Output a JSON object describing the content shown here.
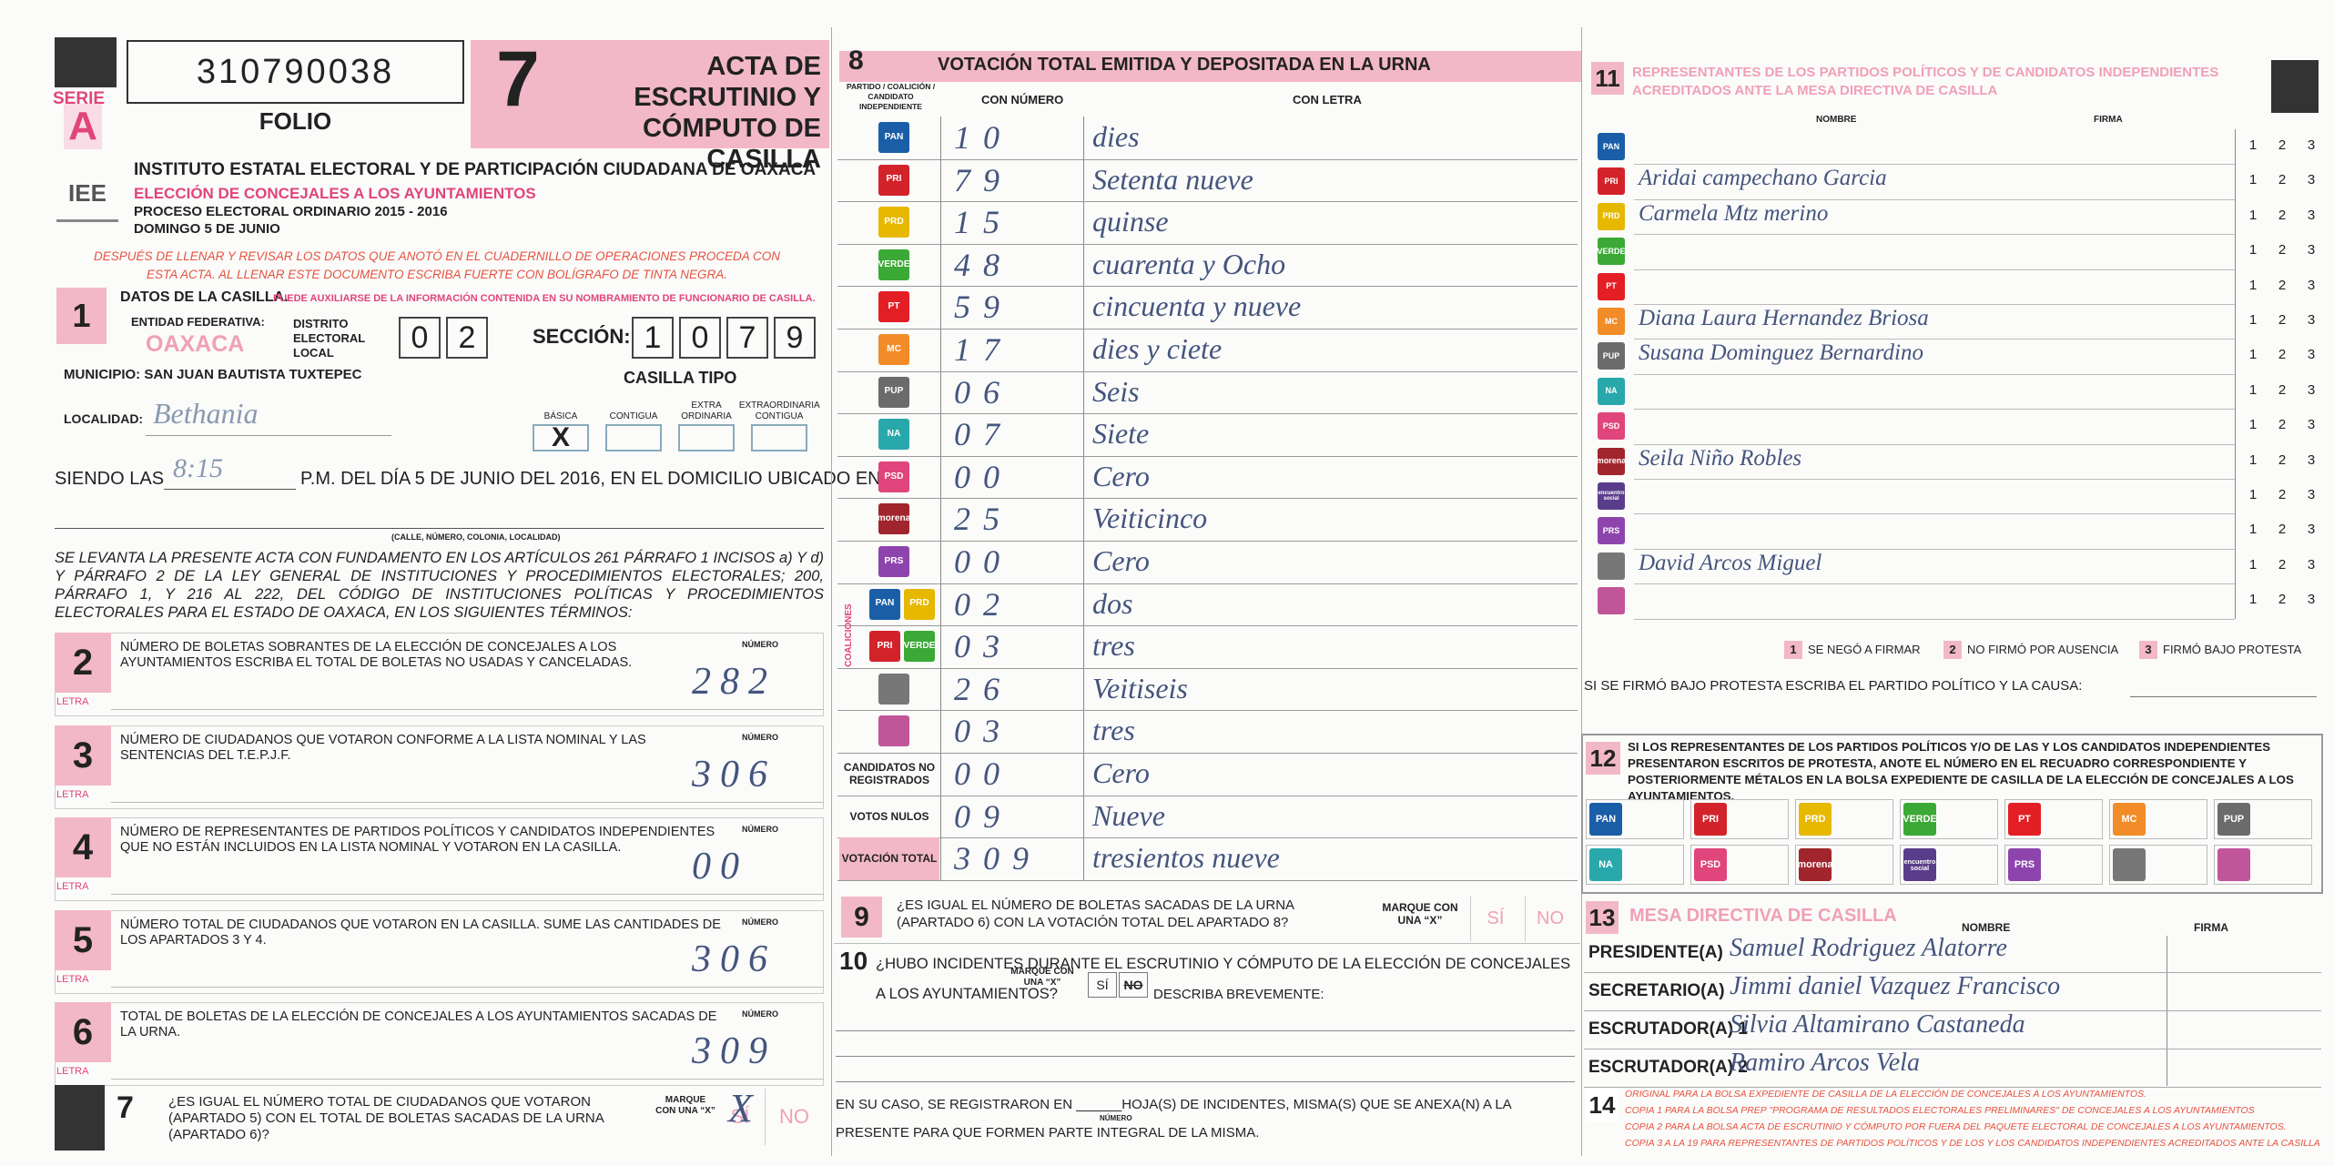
{
  "header": {
    "serie": "SERIE",
    "serie_letter": "A",
    "folio_number": "310790038",
    "folio_label": "FOLIO",
    "acta_number": "7",
    "acta_title": "ACTA DE ESCRUTINIO Y CÓMPUTO DE CASILLA"
  },
  "institute": {
    "logo": "IEE",
    "name": "INSTITUTO ESTATAL ELECTORAL Y DE PARTICIPACIÓN CIUDADANA DE OAXACA",
    "election": "ELECCIÓN DE CONCEJALES A LOS AYUNTAMIENTOS",
    "process": "PROCESO ELECTORAL ORDINARIO 2015 - 2016",
    "date": "DOMINGO 5 DE JUNIO"
  },
  "instruction": "DESPUÉS DE LLENAR Y REVISAR LOS DATOS QUE ANOTÓ EN EL CUADERNILLO DE OPERACIONES PROCEDA CON ESTA ACTA. AL LLENAR ESTE DOCUMENTO ESCRIBA FUERTE CON BOLÍGRAFO DE TINTA NEGRA.",
  "section1": {
    "number": "1",
    "title": "DATOS DE LA CASILLA.",
    "note": "PUEDE AUXILIARSE DE LA INFORMACIÓN CONTENIDA EN SU NOMBRAMIENTO DE FUNCIONARIO DE CASILLA.",
    "entidad_label": "ENTIDAD FEDERATIVA:",
    "entidad": "OAXACA",
    "distrito": {
      "label": "DISTRITO ELECTORAL LOCAL",
      "digits": [
        "0",
        "2"
      ]
    },
    "seccion": {
      "label": "SECCIÓN:",
      "digits": [
        "1",
        "0",
        "7",
        "9"
      ]
    },
    "municipio": "MUNICIPIO: SAN JUAN BAUTISTA TUXTEPEC",
    "localidad_label": "LOCALIDAD:",
    "localidad": "Bethania",
    "casilla_tipo": "CASILLA TIPO",
    "types": [
      {
        "label": "BÁSICA",
        "mark": "X"
      },
      {
        "label": "CONTIGUA",
        "mark": null
      },
      {
        "label": "EXTRA ORDINARIA",
        "mark": null
      },
      {
        "label": "EXTRAORDINARIA CONTIGUA",
        "mark": null
      }
    ],
    "siendo": "SIENDO LAS",
    "time": "8:15",
    "siendo_rest": "P.M. DEL DÍA 5 DE JUNIO DEL 2016, EN EL DOMICILIO UBICADO EN",
    "address_note": "(CALLE, NÚMERO, COLONIA, LOCALIDAD)"
  },
  "legal": "SE LEVANTA LA PRESENTE ACTA CON FUNDAMENTO EN LOS ARTÍCULOS 261 PÁRRAFO 1 INCISOS a) Y d) Y PÁRRAFO 2 DE LA LEY GENERAL DE INSTITUCIONES Y PROCEDIMIENTOS ELECTORALES; 200, PÁRRAFO 1, Y 216 AL 222, DEL CÓDIGO DE INSTITUCIONES POLÍTICAS Y PROCEDIMIENTOS ELECTORALES PARA EL ESTADO DE OAXACA, EN LOS SIGUIENTES TÉRMINOS:",
  "items": {
    "number_label": "NÚMERO",
    "letra_label": "LETRA",
    "list": [
      {
        "number": "2",
        "text": "NÚMERO DE BOLETAS SOBRANTES DE LA ELECCIÓN DE CONCEJALES A LOS AYUNTAMIENTOS ESCRIBA EL TOTAL DE BOLETAS NO USADAS Y CANCELADAS.",
        "value": "282"
      },
      {
        "number": "3",
        "text": "NÚMERO DE CIUDADANOS QUE VOTARON CONFORME A LA LISTA NOMINAL Y LAS SENTENCIAS DEL T.E.P.J.F.",
        "value": "306"
      },
      {
        "number": "4",
        "text": "NÚMERO DE REPRESENTANTES DE PARTIDOS POLÍTICOS Y CANDIDATOS INDEPENDIENTES QUE NO ESTÁN INCLUIDOS EN LA LISTA NOMINAL Y VOTARON EN LA CASILLA.",
        "value": "00"
      },
      {
        "number": "5",
        "text": "NÚMERO TOTAL DE CIUDADANOS QUE VOTARON EN LA CASILLA. SUME LAS CANTIDADES DE LOS APARTADOS 3 Y 4.",
        "value": "306"
      },
      {
        "number": "6",
        "text": "TOTAL DE BOLETAS DE LA ELECCIÓN DE CONCEJALES A LOS AYUNTAMIENTOS SACADAS DE LA URNA.",
        "value": "309"
      }
    ]
  },
  "section7": {
    "number": "7",
    "text": "¿ES IGUAL EL NÚMERO TOTAL DE CIUDADANOS QUE VOTARON (APARTADO 5) CON EL TOTAL DE BOLETAS SACADAS DE LA URNA (APARTADO 6)?",
    "marque": "MARQUE CON UNA “X”",
    "yes": "SÍ",
    "no": "NO",
    "mark": "X"
  },
  "section8": {
    "number": "8",
    "title": "VOTACIÓN TOTAL EMITIDA Y DEPOSITADA EN LA URNA",
    "col_party": "PARTIDO / COALICIÓN / CANDIDATO INDEPENDIENTE",
    "col_number": "CON NÚMERO",
    "col_letter": "CON LETRA",
    "coalitions_label": "COALICIONES",
    "rows": [
      {
        "logos": [
          {
            "label": "PAN",
            "color": "#1b5ea8"
          }
        ],
        "number": "10",
        "letter": "dies"
      },
      {
        "logos": [
          {
            "label": "PRI",
            "color": "#d2232a"
          }
        ],
        "number": "79",
        "letter": "Setenta nueve"
      },
      {
        "logos": [
          {
            "label": "PRD",
            "color": "#e6b800"
          }
        ],
        "number": "15",
        "letter": "quinse"
      },
      {
        "logos": [
          {
            "label": "VERDE",
            "color": "#3aa935"
          }
        ],
        "number": "48",
        "letter": "cuarenta y Ocho"
      },
      {
        "logos": [
          {
            "label": "PT",
            "color": "#e31e24"
          }
        ],
        "number": "59",
        "letter": "cincuenta y nueve"
      },
      {
        "logos": [
          {
            "label": "MC",
            "color": "#f28c28"
          }
        ],
        "number": "17",
        "letter": "dies y ciete"
      },
      {
        "logos": [
          {
            "label": "PUP",
            "color": "#6b6b6b"
          }
        ],
        "number": "06",
        "letter": "Seis"
      },
      {
        "logos": [
          {
            "label": "NA",
            "color": "#29a8ab"
          }
        ],
        "number": "07",
        "letter": "Siete"
      },
      {
        "logos": [
          {
            "label": "PSD",
            "color": "#e0457b"
          }
        ],
        "number": "00",
        "letter": "Cero"
      },
      {
        "logos": [
          {
            "label": "morena",
            "color": "#a0252c"
          }
        ],
        "number": "25",
        "letter": "Veiticinco"
      },
      {
        "logos": [
          {
            "label": "PRS",
            "color": "#8e44ad"
          }
        ],
        "number": "00",
        "letter": "Cero"
      },
      {
        "logos": [
          {
            "label": "PAN",
            "color": "#1b5ea8"
          },
          {
            "label": "PRD",
            "color": "#e6b800"
          }
        ],
        "number": "02",
        "letter": "dos"
      },
      {
        "logos": [
          {
            "label": "PRI",
            "color": "#d2232a"
          },
          {
            "label": "VERDE",
            "color": "#3aa935"
          }
        ],
        "number": "03",
        "letter": "tres"
      },
      {
        "logos": [
          {
            "label": null,
            "color": "#777777"
          }
        ],
        "number": "26",
        "letter": "Veitiseis"
      },
      {
        "logos": [
          {
            "label": null,
            "color": "#c0559a"
          }
        ],
        "number": "03",
        "letter": "tres"
      }
    ],
    "extra_rows": [
      {
        "label": "CANDIDATOS NO REGISTRADOS",
        "number": "00",
        "letter": "Cero"
      },
      {
        "label": "VOTOS NULOS",
        "number": "09",
        "letter": "Nueve"
      },
      {
        "label": "VOTACIÓN TOTAL",
        "number": "309",
        "letter": "tresientos nueve"
      }
    ]
  },
  "section9": {
    "number": "9",
    "text": "¿ES IGUAL EL NÚMERO DE BOLETAS SACADAS DE LA URNA (APARTADO 6) CON LA VOTACIÓN TOTAL DEL APARTADO 8?",
    "marque": "MARQUE CON UNA “X”",
    "yes": "SÍ",
    "no": "NO"
  },
  "section10": {
    "number": "10",
    "text": "¿HUBO INCIDENTES DURANTE EL ESCRUTINIO Y CÓMPUTO DE LA ELECCIÓN DE CONCEJALES A LOS AYUNTAMIENTOS?",
    "marque": "MARQUE CON UNA “X”",
    "yes": "SÍ",
    "no": "NO",
    "describe": "DESCRIBA BREVEMENTE:"
  },
  "incidents": {
    "line1": "EN SU CASO, SE REGISTRARON EN ______HOJA(S) DE INCIDENTES, MISMA(S) QUE SE ANEXA(N) A LA",
    "number_note": "NÚMERO",
    "line2": "PRESENTE PARA QUE FORMEN PARTE INTEGRAL DE LA MISMA."
  },
  "section11": {
    "number": "11",
    "title": "REPRESENTANTES DE LOS PARTIDOS POLÍTICOS Y DE CANDIDATOS INDEPENDIENTES ACREDITADOS ANTE LA MESA DIRECTIVA DE CASILLA",
    "col_name": "NOMBRE",
    "col_sign": "FIRMA",
    "options": [
      "1",
      "2",
      "3"
    ],
    "rows": [
      {
        "logo": {
          "label": "PAN",
          "color": "#1b5ea8"
        },
        "name": null
      },
      {
        "logo": {
          "label": "PRI",
          "color": "#d2232a"
        },
        "name": "Aridai campechano Garcia"
      },
      {
        "logo": {
          "label": "PRD",
          "color": "#e6b800"
        },
        "name": "Carmela Mtz merino"
      },
      {
        "logo": {
          "label": "VERDE",
          "color": "#3aa935"
        },
        "name": null
      },
      {
        "logo": {
          "label": "PT",
          "color": "#e31e24"
        },
        "name": null
      },
      {
        "logo": {
          "label": "MC",
          "color": "#f28c28"
        },
        "name": "Diana Laura Hernandez Briosa"
      },
      {
        "logo": {
          "label": "PUP",
          "color": "#6b6b6b"
        },
        "name": "Susana Dominguez Bernardino"
      },
      {
        "logo": {
          "label": "NA",
          "color": "#29a8ab"
        },
        "name": null
      },
      {
        "logo": {
          "label": "PSD",
          "color": "#e0457b"
        },
        "name": null
      },
      {
        "logo": {
          "label": "morena",
          "color": "#a0252c"
        },
        "name": "Seila Niño Robles"
      },
      {
        "logo": {
          "label": "encuentro social",
          "color": "#5a3d8a"
        },
        "name": null
      },
      {
        "logo": {
          "label": "PRS",
          "color": "#8e44ad"
        },
        "name": null
      },
      {
        "logo": {
          "label": null,
          "color": "#777777"
        },
        "name": "David Arcos Miguel"
      },
      {
        "logo": {
          "label": null,
          "color": "#c0559a"
        },
        "name": null
      }
    ],
    "legend": [
      {
        "n": "1",
        "text": "SE NEGÓ A FIRMAR"
      },
      {
        "n": "2",
        "text": "NO FIRMÓ POR AUSENCIA"
      },
      {
        "n": "3",
        "text": "FIRMÓ BAJO PROTESTA"
      }
    ],
    "protesta": "SI SE FIRMÓ BAJO PROTESTA ESCRIBA EL PARTIDO POLÍTICO Y LA CAUSA:"
  },
  "section12": {
    "number": "12",
    "text": "SI LOS REPRESENTANTES DE LOS PARTIDOS POLÍTICOS Y/O DE LAS Y LOS CANDIDATOS INDEPENDIENTES PRESENTARON ESCRITOS DE PROTESTA, ANOTE EL NÚMERO EN EL RECUADRO CORRESPONDIENTE Y POSTERIORMENTE MÉTALOS EN LA BOLSA EXPEDIENTE DE CASILLA DE LA ELECCIÓN DE CONCEJALES A LOS AYUNTAMIENTOS.",
    "logos": [
      {
        "label": "PAN",
        "color": "#1b5ea8"
      },
      {
        "label": "PRI",
        "color": "#d2232a"
      },
      {
        "label": "PRD",
        "color": "#e6b800"
      },
      {
        "label": "VERDE",
        "color": "#3aa935"
      },
      {
        "label": "PT",
        "color": "#e31e24"
      },
      {
        "label": "MC",
        "color": "#f28c28"
      },
      {
        "label": "PUP",
        "color": "#6b6b6b"
      },
      {
        "label": "NA",
        "color": "#29a8ab"
      },
      {
        "label": "PSD",
        "color": "#e0457b"
      },
      {
        "label": "morena",
        "color": "#a0252c"
      },
      {
        "label": "encuentro social",
        "color": "#5a3d8a"
      },
      {
        "label": "PRS",
        "color": "#8e44ad"
      },
      {
        "label": null,
        "color": "#777777"
      },
      {
        "label": null,
        "color": "#c0559a"
      }
    ]
  },
  "section13": {
    "number": "13",
    "title": "MESA DIRECTIVA DE CASILLA",
    "col_name": "NOMBRE",
    "col_sign": "FIRMA",
    "members": [
      {
        "role": "PRESIDENTE(A)",
        "name": "Samuel Rodriguez Alatorre"
      },
      {
        "role": "SECRETARIO(A)",
        "name": "Jimmi daniel Vazquez Francisco"
      },
      {
        "role": "ESCRUTADOR(A) 1",
        "name": "Silvia Altamirano Castaneda"
      },
      {
        "role": "ESCRUTADOR(A) 2",
        "name": "Ramiro Arcos Vela"
      }
    ]
  },
  "section14": {
    "number": "14",
    "lines": [
      "ORIGINAL PARA LA BOLSA EXPEDIENTE DE CASILLA DE LA ELECCIÓN DE CONCEJALES A LOS AYUNTAMIENTOS.",
      "COPIA 1 PARA LA BOLSA PREP \"PROGRAMA DE RESULTADOS ELECTORALES PRELIMINARES\" DE CONCEJALES A LOS AYUNTAMIENTOS",
      "COPIA 2 PARA LA BOLSA ACTA DE ESCRUTINIO Y CÓMPUTO POR FUERA DEL PAQUETE ELECTORAL DE CONCEJALES A LOS AYUNTAMIENTOS.",
      "COPIA 3 A LA 19 PARA REPRESENTANTES DE PARTIDOS POLÍTICOS Y DE LOS Y LOS CANDIDATOS INDEPENDIENTES ACREDITADOS ANTE LA CASILLA"
    ]
  }
}
